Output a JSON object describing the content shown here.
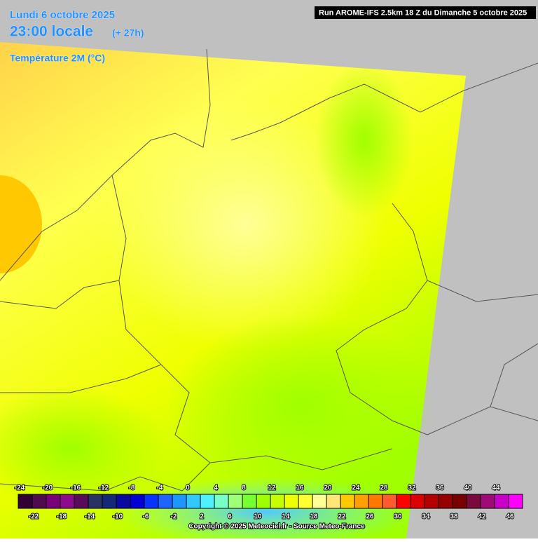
{
  "header": {
    "date": "Lundi 6 octobre 2025",
    "time": "23:00 locale",
    "lead": "(+ 27h)",
    "variable": "Température 2M (°C)",
    "run": "Run AROME-IFS 2.5km 18 Z du Dimanche 5 octobre 2025"
  },
  "legend": {
    "values": [
      "-24",
      "-22",
      "-20",
      "-18",
      "-16",
      "-14",
      "-12",
      "-10",
      "-8",
      "-6",
      "-4",
      "-2",
      "0",
      "2",
      "4",
      "6",
      "8",
      "10",
      "12",
      "14",
      "16",
      "18",
      "20",
      "22",
      "24",
      "26",
      "28",
      "30",
      "32",
      "34",
      "36",
      "38",
      "40",
      "42",
      "44",
      "46"
    ],
    "colors": [
      "#320032",
      "#500a50",
      "#780078",
      "#8c0a8c",
      "#5a0a5a",
      "#283264",
      "#14287a",
      "#0a0aa0",
      "#0000d2",
      "#0a32ff",
      "#1e64ff",
      "#1e96ff",
      "#32c8ff",
      "#50f0ff",
      "#78ffc8",
      "#a0ff78",
      "#78ff32",
      "#a0ff00",
      "#c8ff00",
      "#f0ff00",
      "#ffff32",
      "#ffff96",
      "#ffe678",
      "#ffc800",
      "#ffa000",
      "#ff7800",
      "#ff5a32",
      "#ff0000",
      "#dc0000",
      "#b40000",
      "#960000",
      "#780000",
      "#780a3c",
      "#a00a78",
      "#c800c8",
      "#ff00ff",
      "#ff78ff"
    ]
  },
  "footer": {
    "copyright": "Copyright © 2025 Meteociel.fr - Source Meteo-France"
  }
}
